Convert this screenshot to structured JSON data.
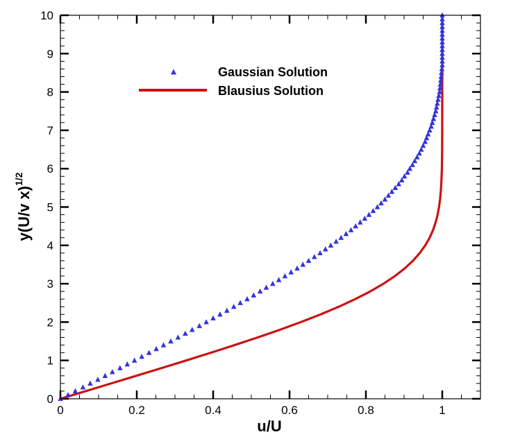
{
  "chart_data": {
    "type": "line",
    "xlabel": "u/U",
    "ylabel_main": "y(U/v x)",
    "ylabel_sup": "1/2",
    "xlim": [
      0,
      1.1
    ],
    "ylim": [
      0,
      10
    ],
    "x_ticks": [
      0,
      0.2,
      0.4,
      0.6,
      0.8,
      1
    ],
    "x_tick_labels": [
      "0",
      "0.2",
      "0.4",
      "0.6",
      "0.8",
      "1"
    ],
    "y_ticks": [
      0,
      1,
      2,
      3,
      4,
      5,
      6,
      7,
      8,
      9,
      10
    ],
    "y_tick_labels": [
      "0",
      "1",
      "2",
      "3",
      "4",
      "5",
      "6",
      "7",
      "8",
      "9",
      "10"
    ],
    "grid": false,
    "legend_position": "top-left",
    "series": [
      {
        "name": "Gaussian Solution",
        "style": "markers",
        "marker": "triangle",
        "color": "#3333dd",
        "x": [
          0.0,
          0.02,
          0.039,
          0.059,
          0.078,
          0.098,
          0.117,
          0.136,
          0.156,
          0.175,
          0.194,
          0.213,
          0.232,
          0.251,
          0.27,
          0.289,
          0.308,
          0.327,
          0.345,
          0.364,
          0.382,
          0.4,
          0.418,
          0.436,
          0.454,
          0.471,
          0.489,
          0.506,
          0.523,
          0.539,
          0.556,
          0.572,
          0.588,
          0.604,
          0.62,
          0.635,
          0.65,
          0.665,
          0.68,
          0.694,
          0.708,
          0.722,
          0.735,
          0.748,
          0.761,
          0.773,
          0.785,
          0.797,
          0.808,
          0.819,
          0.83,
          0.84,
          0.85,
          0.859,
          0.868,
          0.877,
          0.886,
          0.894,
          0.901,
          0.909,
          0.915,
          0.922,
          0.928,
          0.934,
          0.94,
          0.945,
          0.95,
          0.955,
          0.959,
          0.963,
          0.967,
          0.971,
          0.974,
          0.977,
          0.98,
          0.983,
          0.985,
          0.987,
          0.989,
          0.991,
          0.993,
          0.994,
          0.995,
          0.996,
          0.997,
          0.998,
          0.999,
          1.0,
          1.0,
          1.0,
          1.0,
          1.0,
          1.0,
          1.0,
          1.0,
          1.0,
          1.0,
          1.0,
          1.0,
          1.0,
          1.0
        ],
        "y": [
          0.0,
          0.1,
          0.2,
          0.3,
          0.4,
          0.5,
          0.6,
          0.7,
          0.8,
          0.9,
          1.0,
          1.1,
          1.2,
          1.3,
          1.4,
          1.5,
          1.6,
          1.7,
          1.8,
          1.9,
          2.0,
          2.1,
          2.2,
          2.3,
          2.4,
          2.5,
          2.6,
          2.7,
          2.8,
          2.9,
          3.0,
          3.1,
          3.2,
          3.3,
          3.4,
          3.5,
          3.6,
          3.7,
          3.8,
          3.9,
          4.0,
          4.1,
          4.2,
          4.3,
          4.4,
          4.5,
          4.6,
          4.7,
          4.8,
          4.9,
          5.0,
          5.1,
          5.2,
          5.3,
          5.4,
          5.5,
          5.6,
          5.7,
          5.8,
          5.9,
          6.0,
          6.1,
          6.2,
          6.3,
          6.4,
          6.5,
          6.6,
          6.7,
          6.8,
          6.9,
          7.0,
          7.1,
          7.2,
          7.3,
          7.4,
          7.5,
          7.6,
          7.7,
          7.8,
          7.9,
          8.0,
          8.1,
          8.2,
          8.3,
          8.4,
          8.5,
          8.6,
          8.7,
          8.8,
          8.9,
          9.0,
          9.1,
          9.2,
          9.3,
          9.4,
          9.5,
          9.6,
          9.7,
          9.8,
          9.9,
          10.0
        ]
      },
      {
        "name": "Blausius Solution",
        "style": "line",
        "color": "#cc1111",
        "x": [
          0.0,
          0.0664,
          0.1328,
          0.1989,
          0.2647,
          0.3298,
          0.3938,
          0.4563,
          0.5168,
          0.5748,
          0.6298,
          0.6813,
          0.729,
          0.7725,
          0.8115,
          0.846,
          0.8761,
          0.9018,
          0.9233,
          0.9411,
          0.9555,
          0.967,
          0.9759,
          0.9827,
          0.9878,
          0.9915,
          0.9942,
          0.9961,
          0.9974,
          0.9983,
          0.999,
          0.9996,
          0.9999,
          1.0,
          1.0
        ],
        "y": [
          0.0,
          0.2,
          0.4,
          0.6,
          0.8,
          1.0,
          1.2,
          1.4,
          1.6,
          1.8,
          2.0,
          2.2,
          2.4,
          2.6,
          2.8,
          3.0,
          3.2,
          3.4,
          3.6,
          3.8,
          4.0,
          4.2,
          4.4,
          4.6,
          4.8,
          5.0,
          5.2,
          5.4,
          5.6,
          5.8,
          6.0,
          6.4,
          7.0,
          8.0,
          10.0
        ]
      }
    ]
  }
}
